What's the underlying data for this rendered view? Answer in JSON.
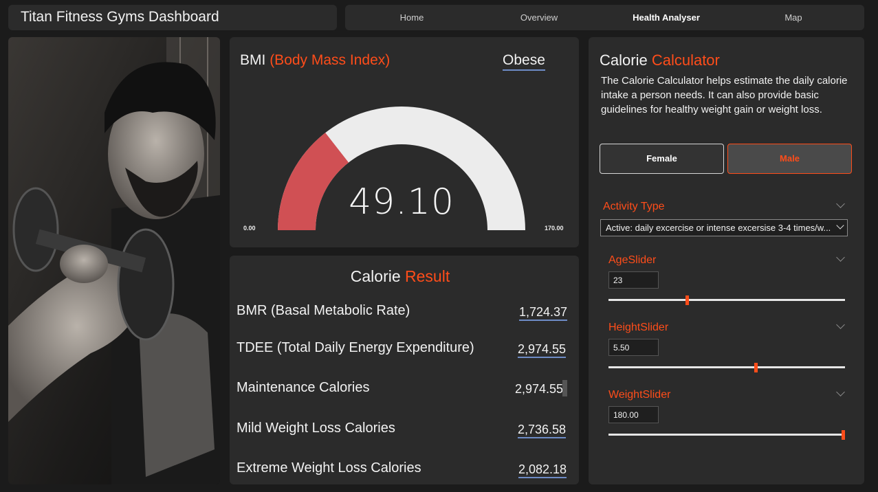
{
  "header": {
    "title": "Titan Fitness Gyms Dashboard",
    "nav": [
      {
        "label": "Home",
        "active": false
      },
      {
        "label": "Overview",
        "active": false
      },
      {
        "label": "Health Analyser",
        "active": true
      },
      {
        "label": "Map",
        "active": false
      }
    ]
  },
  "photo": {
    "description_icon": "athlete-photo"
  },
  "bmi": {
    "title_main": "BMI",
    "title_accent": "(Body Mass Index)",
    "status": "Obese",
    "value": "49.10",
    "gauge_value": 49.1,
    "gauge_min_label": "0.00",
    "gauge_max_label": "170.00",
    "gauge_min": 0,
    "gauge_max": 170,
    "fill_color": "#d05054",
    "track_color": "#ececec"
  },
  "calorie_result": {
    "title_main": "Calorie",
    "title_accent": "Result",
    "rows": [
      {
        "label": "BMR (Basal Metabolic Rate)",
        "value": "1,724.37"
      },
      {
        "label": "TDEE (Total Daily Energy Expenditure)",
        "value": "2,974.55"
      },
      {
        "label": "Maintenance Calories",
        "value": "2,974.55"
      },
      {
        "label": "Mild Weight Loss Calories",
        "value": "2,736.58"
      },
      {
        "label": "Extreme Weight Loss Calories",
        "value": "2,082.18"
      }
    ]
  },
  "calculator": {
    "title_main": "Calorie",
    "title_accent": "Calculator",
    "description": "The Calorie Calculator helps estimate the daily calorie intake a person needs. It can also provide basic guidelines for healthy weight gain or weight loss.",
    "gender": {
      "female": "Female",
      "male": "Male",
      "selected": "Male"
    },
    "activity": {
      "label": "Activity Type",
      "selected": "Active: daily excercise or intense excersise 3-4 times/w..."
    },
    "age": {
      "label": "AgeSlider",
      "value": "23",
      "fraction": 0.33
    },
    "height": {
      "label": "HeightSlider",
      "value": "5.50",
      "fraction": 0.625
    },
    "weight": {
      "label": "WeightSlider",
      "value": "180.00",
      "fraction": 1.0
    }
  },
  "colors": {
    "accent": "#ff4d1a",
    "panel": "#2b2b2b",
    "background": "#1b1b1b"
  }
}
